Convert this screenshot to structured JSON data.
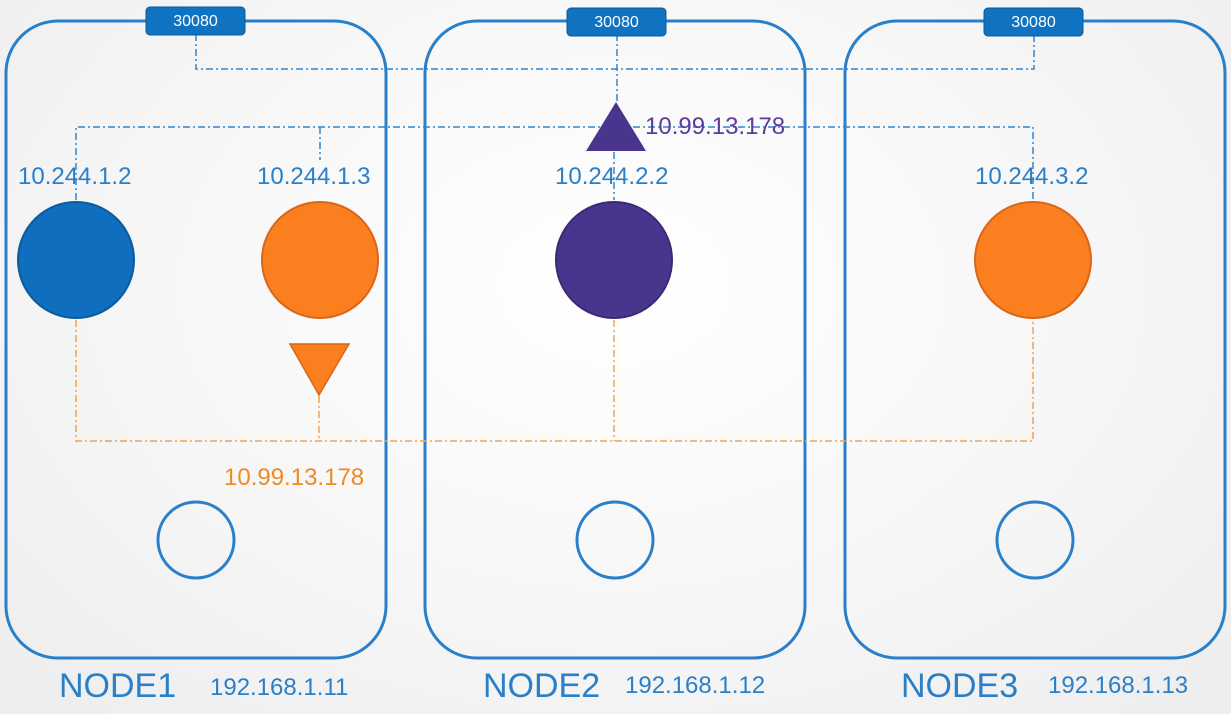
{
  "colors": {
    "node_border": "#2a7fc9",
    "blue_line": "#2f86cf",
    "orange_line": "#f7a04f",
    "text_blue": "#2a7fc9",
    "text_orange": "#f08a24",
    "text_purple": "#5a3c9c",
    "pod_blue": "#0f6fbe",
    "pod_orange": "#fb7f1e",
    "pod_purple": "#4a358e",
    "port_fill": "#0f73c1"
  },
  "nodes": [
    {
      "name": "NODE1",
      "ip": "192.168.1.11",
      "port": "30080"
    },
    {
      "name": "NODE2",
      "ip": "192.168.1.12",
      "port": "30080"
    },
    {
      "name": "NODE3",
      "ip": "192.168.1.13",
      "port": "30080"
    }
  ],
  "pods": [
    {
      "ip": "10.244.1.2",
      "color": "blue"
    },
    {
      "ip": "10.244.1.3",
      "color": "orange"
    },
    {
      "ip": "10.244.2.2",
      "color": "purple"
    },
    {
      "ip": "10.244.3.2",
      "color": "orange"
    }
  ],
  "services": {
    "purple": {
      "ip": "10.99.13.178",
      "icon": "triangle-up-icon"
    },
    "orange": {
      "ip": "10.99.13.178",
      "icon": "triangle-down-icon"
    }
  }
}
